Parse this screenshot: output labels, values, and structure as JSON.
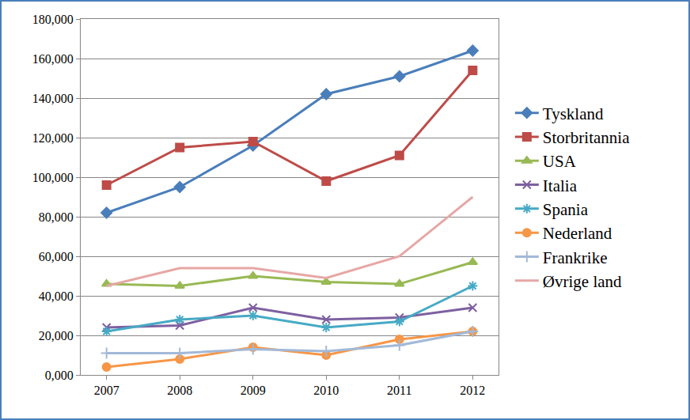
{
  "chart_data": {
    "type": "line",
    "categories": [
      "2007",
      "2008",
      "2009",
      "2010",
      "2011",
      "2012"
    ],
    "series": [
      {
        "name": "Tyskland",
        "color": "#4a7ebb",
        "marker": "diamond",
        "values": [
          82000,
          95000,
          116000,
          142000,
          151000,
          164000
        ]
      },
      {
        "name": "Storbritannia",
        "color": "#be4b48",
        "marker": "square",
        "values": [
          96000,
          115000,
          118000,
          98000,
          111000,
          154000
        ]
      },
      {
        "name": "USA",
        "color": "#98b954",
        "marker": "triangle",
        "values": [
          46000,
          45000,
          50000,
          47000,
          46000,
          57000
        ]
      },
      {
        "name": "Italia",
        "color": "#7d60a0",
        "marker": "x",
        "values": [
          24000,
          25000,
          34000,
          28000,
          29000,
          34000
        ]
      },
      {
        "name": "Spania",
        "color": "#46aac5",
        "marker": "star",
        "values": [
          22000,
          28000,
          30000,
          24000,
          27000,
          45000
        ]
      },
      {
        "name": "Nederland",
        "color": "#f79646",
        "marker": "circle",
        "values": [
          4000,
          8000,
          14000,
          10000,
          18000,
          22000
        ]
      },
      {
        "name": "Frankrike",
        "color": "#a2b9d8",
        "marker": "plus",
        "values": [
          11000,
          11000,
          13000,
          12000,
          15000,
          22000
        ]
      },
      {
        "name": "Øvrige land",
        "color": "#e6a7a5",
        "marker": "none",
        "values": [
          45000,
          54000,
          54000,
          49000,
          60000,
          90000
        ]
      }
    ],
    "ylim": [
      0,
      180000
    ],
    "yticks": [
      {
        "value": 0,
        "label": "0,000"
      },
      {
        "value": 20000,
        "label": "20,000"
      },
      {
        "value": 40000,
        "label": "40,000"
      },
      {
        "value": 60000,
        "label": "60,000"
      },
      {
        "value": 80000,
        "label": "80,000"
      },
      {
        "value": 100000,
        "label": "100,000"
      },
      {
        "value": 120000,
        "label": "120,000"
      },
      {
        "value": 140000,
        "label": "140,000"
      },
      {
        "value": 160000,
        "label": "160,000"
      },
      {
        "value": 180000,
        "label": "180,000"
      }
    ],
    "grid": true,
    "legend": "right"
  }
}
